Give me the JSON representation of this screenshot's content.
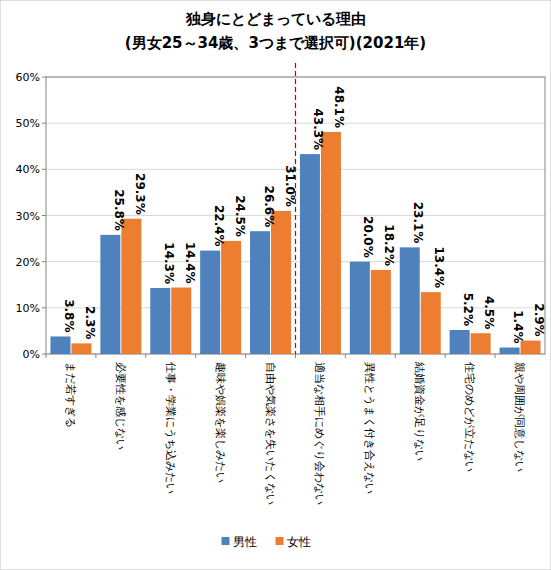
{
  "chart_data": {
    "type": "bar",
    "title": "独身にとどまっている理由",
    "subtitle": "(男女25～34歳、3つまで選択可)(2021年)",
    "categories": [
      "まだ若すぎる",
      "必要性を感じない",
      "仕事・学業にうち込みたい",
      "趣味や娯楽を楽しみたい",
      "自由や気楽さを失いたくない",
      "適当な相手にめぐり会わない",
      "異性とうまく付き合えない",
      "結婚資金が足りない",
      "住宅のめどが立たない",
      "親や周囲が同意しない"
    ],
    "series": [
      {
        "name": "男性",
        "color": "#4f81bd",
        "values": [
          3.8,
          25.8,
          14.3,
          22.4,
          26.6,
          43.3,
          20.0,
          23.1,
          5.2,
          1.4
        ],
        "value_labels": [
          "3.8%",
          "25.8%",
          "14.3%",
          "22.4%",
          "26.6%",
          "43.3%",
          "20.0%",
          "23.1%",
          "5.2%",
          "1.4%"
        ]
      },
      {
        "name": "女性",
        "color": "#ed7d31",
        "values": [
          2.3,
          29.3,
          14.4,
          24.5,
          31.0,
          48.1,
          18.2,
          13.4,
          4.5,
          2.9
        ],
        "value_labels": [
          "2.3%",
          "29.3%",
          "14.4%",
          "24.5%",
          "31.0%",
          "48.1%",
          "18.2%",
          "13.4%",
          "4.5%",
          "2.9%"
        ]
      }
    ],
    "ylim": [
      0,
      60
    ],
    "yticks": [
      {
        "value": 0,
        "label": "0%"
      },
      {
        "value": 10,
        "label": "10%"
      },
      {
        "value": 20,
        "label": "20%"
      },
      {
        "value": 30,
        "label": "30%"
      },
      {
        "value": 40,
        "label": "40%"
      },
      {
        "value": 50,
        "label": "50%"
      },
      {
        "value": 60,
        "label": "60%"
      }
    ],
    "grid": true,
    "data_labels": true,
    "legend": "bottom"
  }
}
